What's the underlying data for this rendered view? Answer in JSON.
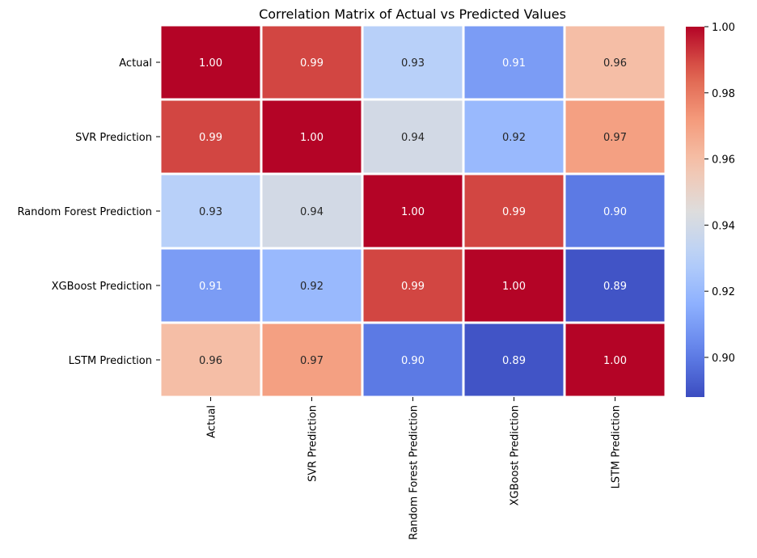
{
  "chart_data": {
    "type": "heatmap",
    "title": "Correlation Matrix of Actual vs Predicted Values",
    "row_labels": [
      "Actual",
      "SVR Prediction",
      "Random Forest Prediction",
      "XGBoost Prediction",
      "LSTM Prediction"
    ],
    "col_labels": [
      "Actual",
      "SVR Prediction",
      "Random Forest Prediction",
      "XGBoost Prediction",
      "LSTM Prediction"
    ],
    "values": [
      [
        1.0,
        0.99,
        0.93,
        0.91,
        0.96
      ],
      [
        0.99,
        1.0,
        0.94,
        0.92,
        0.97
      ],
      [
        0.93,
        0.94,
        1.0,
        0.99,
        0.9
      ],
      [
        0.91,
        0.92,
        0.99,
        1.0,
        0.89
      ],
      [
        0.96,
        0.97,
        0.9,
        0.89,
        1.0
      ]
    ],
    "cell_labels": [
      [
        "1.00",
        "0.99",
        "0.93",
        "0.91",
        "0.96"
      ],
      [
        "0.99",
        "1.00",
        "0.94",
        "0.92",
        "0.97"
      ],
      [
        "0.93",
        "0.94",
        "1.00",
        "0.99",
        "0.90"
      ],
      [
        "0.91",
        "0.92",
        "0.99",
        "1.00",
        "0.89"
      ],
      [
        "0.96",
        "0.97",
        "0.90",
        "0.89",
        "1.00"
      ]
    ],
    "colormap": "coolwarm",
    "vmin": 0.888,
    "vmax": 1.0,
    "colorbar": {
      "ticks": [
        0.9,
        0.92,
        0.94,
        0.96,
        0.98,
        1.0
      ],
      "tick_labels": [
        "0.90",
        "0.92",
        "0.94",
        "0.96",
        "0.98",
        "1.00"
      ]
    },
    "cell_border_color": "#ffffff"
  }
}
